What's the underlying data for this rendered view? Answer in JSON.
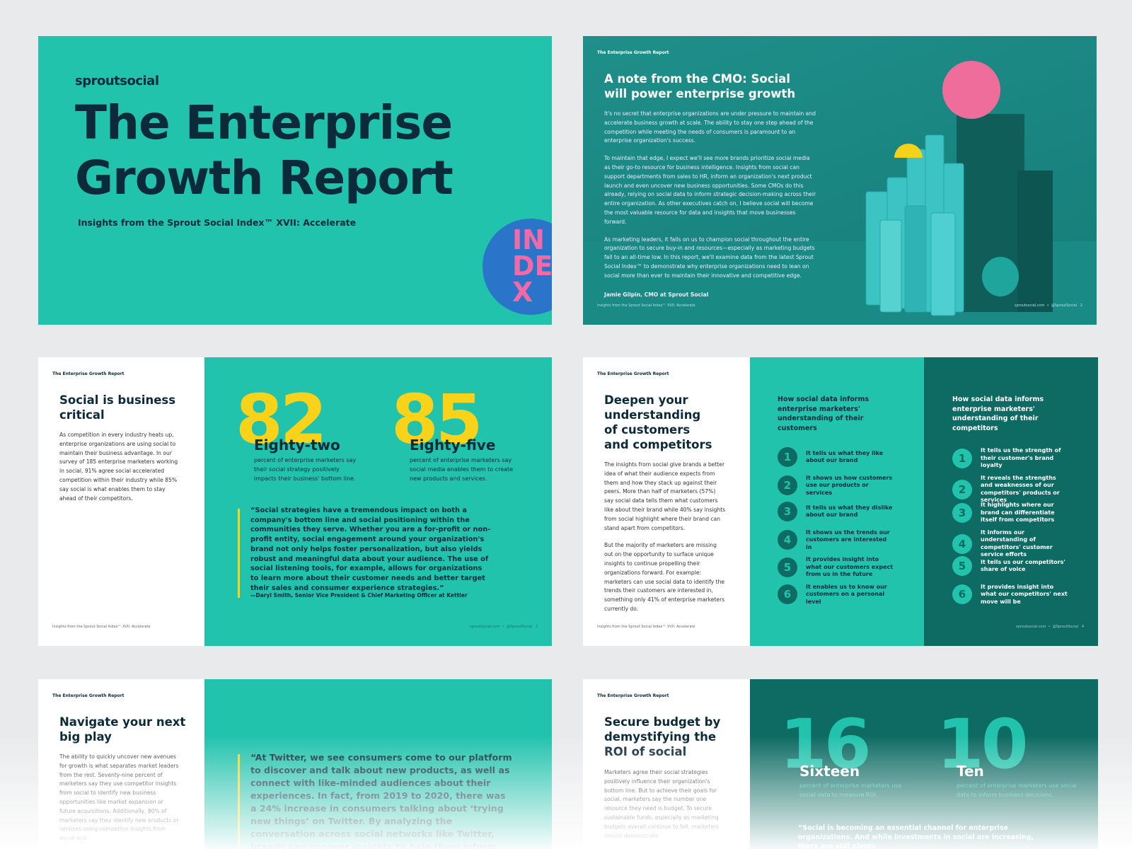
{
  "header": "The Enterprise Growth Report",
  "footer_left": "Insights from the Sprout Social Index™ XVII: Accelerate",
  "cover": {
    "brand": "sproutsocial",
    "title_lines": [
      "The Enterprise",
      "Growth Report"
    ],
    "subtitle": "Insights from the Sprout Social Index™ XVII: Accelerate",
    "badge": [
      "IN",
      "DE",
      "X"
    ]
  },
  "cmo_note": {
    "title": "A note from the CMO: Social will power enterprise growth",
    "paragraphs": [
      "It's no secret that enterprise organizations are under pressure to maintain and accelerate business growth at scale. The ability to stay one step ahead of the competition while meeting the needs of consumers is paramount to an enterprise organization's success.",
      "To maintain that edge, I expect we'll see more brands prioritize social media as their go-to resource for business intelligence. Insights from social can support departments from sales to HR, inform an organization's next product launch and even uncover new business opportunities. Some CMOs do this already, relying on social data to inform strategic decision-making across their entire organization. As other executives catch on, I believe social will become the most valuable resource for data and insights that move businesses forward.",
      "As marketing leaders, it falls on us to champion social throughout the entire organization to secure buy-in and resources—especially as marketing budgets fall to an all-time low. In this report, we'll examine data from the latest Sprout Social Index™ to demonstrate why enterprise organizations need to lean on social more than ever to maintain their innovative and competitive edge."
    ],
    "signature": "Jamie Gilpin, CMO at Sprout Social",
    "footer_right": "sproutsocial.com  •  @SproutSocial   2"
  },
  "social_critical": {
    "title": "Social is business critical",
    "body": "As competition in every industry heats up, enterprise organizations are using social to maintain their business advantage. In our survey of 185 enterprise marketers working in social, 91% agree social accelerated competition within their industry while 85% say social is what enables them to stay ahead of their competitors.",
    "stats": [
      {
        "number": "82",
        "word": "Eighty-two",
        "desc": "percent of enterprise marketers say their social strategy positively impacts their business' bottom line."
      },
      {
        "number": "85",
        "word": "Eighty-five",
        "desc": "percent of enterprise marketers say social media enables them to create new products and services."
      }
    ],
    "quote": "“Social strategies have a tremendous impact on both a company's bottom line and social positioning within the communities they serve. Whether you are a for-profit or non-profit entity, social engagement around your organization's brand not only helps foster personalization, but also yields robust and meaningful data about your audience. The use of social listening tools, for example, allows for organizations to learn more about their customer needs and better target their sales and consumer experience strategies.”",
    "attribution": "—Daryl Smith, Senior Vice President & Chief Marketing Officer at Kettler",
    "footer_right": "sproutsocial.com  •  @SproutSocial   3"
  },
  "deepen": {
    "title": "Deepen your understanding of customers and competitors",
    "paragraphs": [
      "The insights from social give brands a better idea of what their audience expects from them and how they stack up against their peers. More than half of marketers (57%) say social data tells them what customers like about their brand while 40% say insights from social highlight where their brand can stand apart from competitors.",
      "But the majority of marketers are missing out on the opportunity to surface unique insights to continue propelling their organizations forward. For example: marketers can use social data to identify the trends their customers are interested in, something only 41% of enterprise marketers currently do."
    ],
    "columns": [
      {
        "heading": "How social data informs enterprise marketers' understanding of their customers",
        "items": [
          {
            "num": "1",
            "text": "It tells us what they like about our brand"
          },
          {
            "num": "2",
            "text": "It shows us how customers use our products or services"
          },
          {
            "num": "3",
            "text": "It tells us what they dislike about our brand"
          },
          {
            "num": "4",
            "text": "It shows us the trends our customers are interested in"
          },
          {
            "num": "5",
            "text": "It provides insight into what our customers expect from us in the future"
          },
          {
            "num": "6",
            "text": "It enables us to know our customers on a personal level"
          }
        ]
      },
      {
        "heading": "How social data informs enterprise marketers' understanding of their competitors",
        "items": [
          {
            "num": "1",
            "text": "It tells us the strength of their customer's brand loyalty"
          },
          {
            "num": "2",
            "text": "It reveals the strengths and weaknesses of our competitors' products or services"
          },
          {
            "num": "3",
            "text": "It highlights where our brand can differentiate itself from competitors"
          },
          {
            "num": "4",
            "text": "It informs our understanding of competitors' customer service efforts"
          },
          {
            "num": "5",
            "text": "It tells us our competitors' share of voice"
          },
          {
            "num": "6",
            "text": "It provides insight into what our competitors' next move will be"
          }
        ]
      }
    ],
    "footer_right": "sproutsocial.com  •  @SproutSocial   4"
  },
  "next_play": {
    "title": "Navigate your next big play",
    "body": "The ability to quickly uncover new avenues for growth is what separates market leaders from the rest. Seventy-nine percent of marketers say they use competitor insights from social to identify new business opportunities like market expansion or future acquisitions. Additionally, 80% of marketers say they identify new products or services using competitor insights from social and",
    "quote": "“At Twitter, we see consumers come to our platform to discover and talk about new products, as well as connect with like-minded audiences about their experiences. In fact, from 2019 to 2020, there was a 24% increase in consumers talking about ‘trying new things’ on Twitter. By analyzing the conversation across social networks like Twitter, brands can uncover insights to help them inform"
  },
  "secure_budget": {
    "title": "Secure budget by demystifying the ROI of social",
    "body": "Marketers agree their social strategies positively influence their organization's bottom line. But to achieve their goals for social, marketers say the number one resource they need is budget. To secure sustainable funds, especially as marketing budgets overall continue to fall, marketers should demonstrate",
    "stats": [
      {
        "number": "16",
        "word": "Sixteen",
        "desc": "percent of enterprise marketers use social data to measure ROI."
      },
      {
        "number": "10",
        "word": "Ten",
        "desc": "percent of enterprise marketers use social data to inform business decisions."
      }
    ],
    "quote": "“Social is becoming an essential channel for enterprise organizations. And while investments in social are increasing, there are still plenty"
  }
}
